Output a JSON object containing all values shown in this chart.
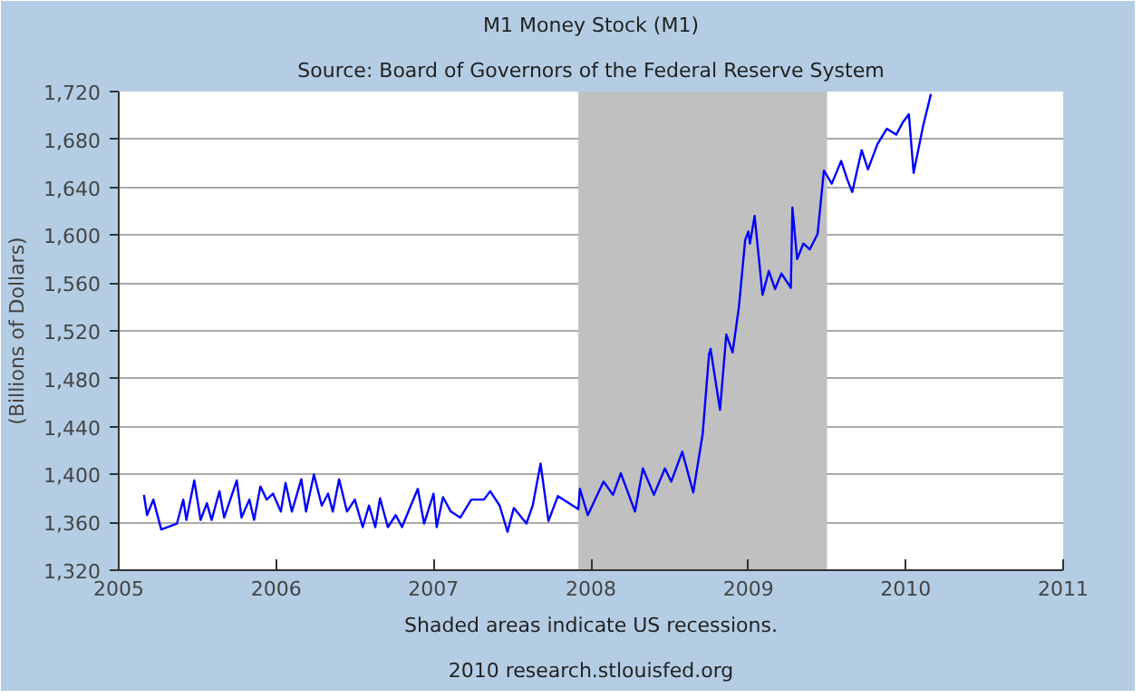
{
  "chart_data": {
    "type": "line",
    "title": "M1 Money Stock (M1)",
    "subtitle": "Source: Board of Governors of the Federal Reserve System",
    "ylabel": "(Billions of Dollars)",
    "annotations": [
      "Shaded areas indicate US recessions.",
      "2010 research.stlouisfed.org"
    ],
    "x": [
      2005.16,
      2005.18,
      2005.22,
      2005.27,
      2005.37,
      2005.41,
      2005.43,
      2005.48,
      2005.52,
      2005.56,
      2005.59,
      2005.64,
      2005.67,
      2005.75,
      2005.78,
      2005.83,
      2005.86,
      2005.9,
      2005.94,
      2005.98,
      2006.03,
      2006.06,
      2006.1,
      2006.16,
      2006.19,
      2006.24,
      2006.29,
      2006.33,
      2006.36,
      2006.4,
      2006.45,
      2006.5,
      2006.55,
      2006.59,
      2006.63,
      2006.66,
      2006.71,
      2006.76,
      2006.8,
      2006.84,
      2006.9,
      2006.94,
      2007.0,
      2007.02,
      2007.06,
      2007.11,
      2007.17,
      2007.24,
      2007.32,
      2007.36,
      2007.42,
      2007.47,
      2007.51,
      2007.59,
      2007.63,
      2007.68,
      2007.73,
      2007.79,
      2007.92,
      2007.93,
      2007.98,
      2008.08,
      2008.14,
      2008.19,
      2008.28,
      2008.33,
      2008.4,
      2008.47,
      2008.51,
      2008.58,
      2008.65,
      2008.71,
      2008.75,
      2008.76,
      2008.82,
      2008.86,
      2008.9,
      2008.94,
      2008.98,
      2009.0,
      2009.01,
      2009.04,
      2009.09,
      2009.13,
      2009.17,
      2009.21,
      2009.27,
      2009.28,
      2009.31,
      2009.35,
      2009.39,
      2009.44,
      2009.48,
      2009.53,
      2009.59,
      2009.63,
      2009.66,
      2009.72,
      2009.76,
      2009.82,
      2009.88,
      2009.94,
      2009.98,
      2010.02,
      2010.05,
      2010.11,
      2010.16
    ],
    "series": [
      {
        "color": "#0000ff",
        "values": [
          1383,
          1366,
          1379,
          1354,
          1359,
          1379,
          1362,
          1395,
          1362,
          1376,
          1362,
          1386,
          1364,
          1395,
          1364,
          1379,
          1362,
          1390,
          1379,
          1384,
          1369,
          1393,
          1369,
          1396,
          1369,
          1400,
          1374,
          1384,
          1369,
          1396,
          1369,
          1379,
          1356,
          1374,
          1356,
          1380,
          1356,
          1366,
          1356,
          1369,
          1388,
          1359,
          1384,
          1356,
          1381,
          1369,
          1364,
          1379,
          1379,
          1386,
          1374,
          1352,
          1372,
          1359,
          1374,
          1409,
          1361,
          1382,
          1371,
          1388,
          1366,
          1394,
          1383,
          1401,
          1369,
          1405,
          1383,
          1405,
          1394,
          1419,
          1385,
          1434,
          1500,
          1505,
          1454,
          1517,
          1502,
          1540,
          1596,
          1603,
          1593,
          1616,
          1550,
          1570,
          1555,
          1568,
          1556,
          1623,
          1580,
          1593,
          1588,
          1601,
          1654,
          1643,
          1662,
          1646,
          1636,
          1671,
          1655,
          1676,
          1689,
          1684,
          1694,
          1701,
          1652,
          1691,
          1718
        ]
      }
    ],
    "xlim": [
      2005,
      2011
    ],
    "xticks": [
      2005,
      2006,
      2007,
      2008,
      2009,
      2010,
      2011
    ],
    "ylim": [
      1320,
      1720
    ],
    "yticks": [
      {
        "value": 1320,
        "label": "1,320"
      },
      {
        "value": 1360,
        "label": "1,360"
      },
      {
        "value": 1400,
        "label": "1,400"
      },
      {
        "value": 1440,
        "label": "1,440"
      },
      {
        "value": 1480,
        "label": "1,480"
      },
      {
        "value": 1520,
        "label": "1,520"
      },
      {
        "value": 1560,
        "label": "1,560"
      },
      {
        "value": 1600,
        "label": "1,600"
      },
      {
        "value": 1640,
        "label": "1,640"
      },
      {
        "value": 1680,
        "label": "1,680"
      },
      {
        "value": 1720,
        "label": "1,720"
      }
    ],
    "bands": [
      {
        "axis": "x",
        "from": 2007.92,
        "to": 2009.5,
        "color": "#c0c0c0"
      }
    ],
    "grid": "y",
    "line_style": "solid",
    "marker": "none"
  }
}
